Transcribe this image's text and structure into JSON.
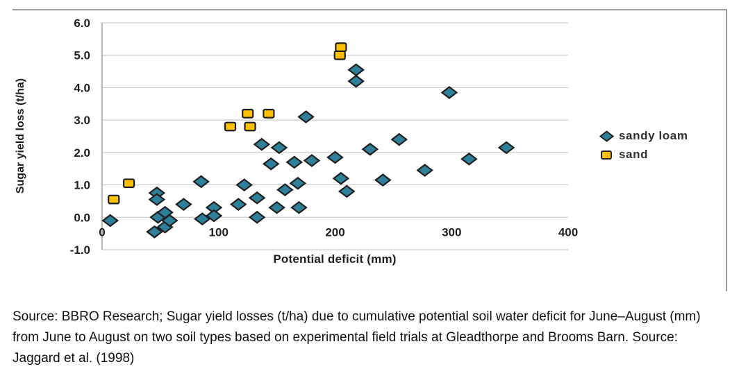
{
  "chart": {
    "y_axis_title": "Sugar yield loss (t/ha)",
    "x_axis_title": "Potential deficit (mm)",
    "frame_border_color": "#9a9a9a",
    "gridline_color": "#bfbfbf",
    "axis_line_color": "#a0a0a0",
    "tick_label_color": "#1f1f1f"
  },
  "legend": {
    "items": [
      {
        "label": "sandy loam",
        "marker": "diamond",
        "color": "#2E7F99",
        "outline": "#1f1f1f"
      },
      {
        "label": "sand",
        "marker": "square",
        "color": "#FFC000",
        "outline": "#1f1f1f"
      }
    ]
  },
  "caption": "Source: BBRO Research; Sugar yield losses (t/ha) due to cumulative potential soil water deficit for June–August (mm) from June to August on two soil types based on experimental field trials at Gleadthorpe and Brooms Barn. Source: Jaggard et al. (1998)",
  "chart_data": {
    "type": "scatter",
    "title": "",
    "xlabel": "Potential deficit (mm)",
    "ylabel": "Sugar yield loss (t/ha)",
    "xlim": [
      0,
      400
    ],
    "ylim": [
      -1.0,
      6.0
    ],
    "x_ticks": [
      0,
      100,
      200,
      300,
      400
    ],
    "y_tick_labels": [
      "6.0",
      "5.0",
      "4.0",
      "3.0",
      "2.0",
      "1.0",
      "0.0",
      "-1.0"
    ],
    "grid": true,
    "legend_position": "right",
    "series": [
      {
        "name": "sandy loam",
        "marker": "diamond",
        "color": "#2E7F99",
        "outline": "#1f1f1f",
        "points": [
          [
            7,
            -0.1
          ],
          [
            45,
            -0.45
          ],
          [
            47,
            0.75
          ],
          [
            47,
            0.55
          ],
          [
            48,
            0.0
          ],
          [
            54,
            0.15
          ],
          [
            54,
            -0.3
          ],
          [
            58,
            -0.1
          ],
          [
            70,
            0.4
          ],
          [
            85,
            1.1
          ],
          [
            86,
            -0.05
          ],
          [
            96,
            0.3
          ],
          [
            96,
            0.05
          ],
          [
            117,
            0.4
          ],
          [
            122,
            1.0
          ],
          [
            133,
            0.6
          ],
          [
            133,
            0.0
          ],
          [
            137,
            2.25
          ],
          [
            145,
            1.65
          ],
          [
            150,
            0.3
          ],
          [
            152,
            2.15
          ],
          [
            157,
            0.85
          ],
          [
            165,
            1.7
          ],
          [
            168,
            1.05
          ],
          [
            169,
            0.3
          ],
          [
            175,
            3.1
          ],
          [
            180,
            1.75
          ],
          [
            200,
            1.85
          ],
          [
            205,
            1.2
          ],
          [
            210,
            0.8
          ],
          [
            218,
            4.55
          ],
          [
            218,
            4.2
          ],
          [
            230,
            2.1
          ],
          [
            241,
            1.15
          ],
          [
            255,
            2.4
          ],
          [
            277,
            1.45
          ],
          [
            298,
            3.85
          ],
          [
            315,
            1.8
          ],
          [
            347,
            2.15
          ]
        ]
      },
      {
        "name": "sand",
        "marker": "square",
        "color": "#FFC000",
        "outline": "#1f1f1f",
        "points": [
          [
            10,
            0.55
          ],
          [
            23,
            1.05
          ],
          [
            110,
            2.8
          ],
          [
            125,
            3.2
          ],
          [
            127,
            2.8
          ],
          [
            143,
            3.2
          ],
          [
            204,
            5.0
          ],
          [
            205,
            5.25
          ]
        ]
      }
    ]
  }
}
